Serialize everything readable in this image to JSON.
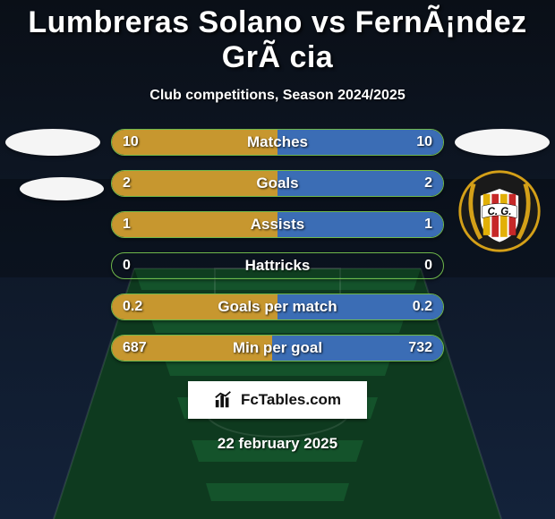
{
  "background": {
    "sky_top": "#0a0f17",
    "sky_bottom": "#13223a",
    "pitch_dark": "#0e3a1f",
    "pitch_light": "#14532b",
    "line_color": "rgba(255,255,255,0.10)"
  },
  "header": {
    "title": "Lumbreras Solano vs FernÃ¡ndez GrÃ cia",
    "subtitle": "Club competitions, Season 2024/2025",
    "title_color": "#ffffff",
    "subtitle_color": "#ffffff"
  },
  "crest": {
    "bg": "#1a1a1a",
    "gold": "#d4a018",
    "stripe1": "#e2b007",
    "stripe2": "#c62828",
    "letters": "C. G."
  },
  "bars": {
    "fill_left": "#c7972f",
    "fill_right": "#3b6db5",
    "border": "#6fb84b",
    "empty": "transparent",
    "rows": [
      {
        "label": "Matches",
        "left": "10",
        "right": "10",
        "left_pct": 50,
        "right_pct": 50
      },
      {
        "label": "Goals",
        "left": "2",
        "right": "2",
        "left_pct": 50,
        "right_pct": 50
      },
      {
        "label": "Assists",
        "left": "1",
        "right": "1",
        "left_pct": 50,
        "right_pct": 50
      },
      {
        "label": "Hattricks",
        "left": "0",
        "right": "0",
        "left_pct": 0,
        "right_pct": 0
      },
      {
        "label": "Goals per match",
        "left": "0.2",
        "right": "0.2",
        "left_pct": 50,
        "right_pct": 50
      },
      {
        "label": "Min per goal",
        "left": "687",
        "right": "732",
        "left_pct": 48.4,
        "right_pct": 51.6
      }
    ]
  },
  "footer": {
    "site": "FcTables.com",
    "date": "22 february 2025"
  }
}
